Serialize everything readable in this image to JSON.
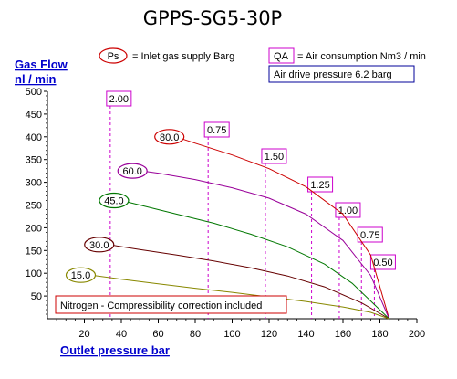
{
  "chart_data": {
    "type": "line",
    "title": "GPPS-SG5-30P",
    "ylabel_line1": "Gas Flow",
    "ylabel_line2": "nl / min",
    "xlabel": "Outlet pressure   bar",
    "xlim": [
      0,
      200
    ],
    "ylim": [
      0,
      500
    ],
    "x_ticks": [
      20,
      40,
      60,
      80,
      100,
      120,
      140,
      160,
      180,
      200
    ],
    "y_ticks": [
      50,
      100,
      150,
      200,
      250,
      300,
      350,
      400,
      450,
      500
    ],
    "legend": {
      "ps_key": "Ps",
      "ps_text": "= Inlet gas supply  Barg",
      "qa_key": "QA",
      "qa_text": "= Air consumption  Nm3 / min",
      "air_drive": "Air drive pressure  6.2 barg"
    },
    "note": "Nitrogen - Compressibility correction included",
    "series": [
      {
        "name": "80.0",
        "color": "#cc0000",
        "points": [
          [
            68,
            402
          ],
          [
            80,
            386
          ],
          [
            100,
            360
          ],
          [
            120,
            330
          ],
          [
            140,
            290
          ],
          [
            160,
            230
          ],
          [
            175,
            140
          ],
          [
            185,
            0
          ]
        ]
      },
      {
        "name": "60.0",
        "color": "#990099",
        "points": [
          [
            48,
            327
          ],
          [
            60,
            320
          ],
          [
            80,
            306
          ],
          [
            100,
            288
          ],
          [
            120,
            265
          ],
          [
            140,
            230
          ],
          [
            160,
            172
          ],
          [
            175,
            95
          ],
          [
            185,
            0
          ]
        ]
      },
      {
        "name": "45.0",
        "color": "#007700",
        "points": [
          [
            38,
            262
          ],
          [
            50,
            250
          ],
          [
            70,
            230
          ],
          [
            90,
            210
          ],
          [
            110,
            186
          ],
          [
            130,
            158
          ],
          [
            150,
            120
          ],
          [
            165,
            78
          ],
          [
            185,
            0
          ]
        ]
      },
      {
        "name": "30.0",
        "color": "#660000",
        "points": [
          [
            30,
            165
          ],
          [
            50,
            152
          ],
          [
            70,
            140
          ],
          [
            90,
            127
          ],
          [
            110,
            112
          ],
          [
            130,
            94
          ],
          [
            150,
            70
          ],
          [
            170,
            35
          ],
          [
            185,
            0
          ]
        ]
      },
      {
        "name": "15.0",
        "color": "#888800",
        "points": [
          [
            20,
            98
          ],
          [
            40,
            87
          ],
          [
            60,
            77
          ],
          [
            80,
            67
          ],
          [
            100,
            58
          ],
          [
            120,
            48
          ],
          [
            140,
            38
          ],
          [
            160,
            26
          ],
          [
            175,
            14
          ],
          [
            185,
            0
          ]
        ]
      }
    ],
    "air_consumption": [
      {
        "label": "2.00",
        "x": 34,
        "y": 0
      },
      {
        "label": "0.75",
        "x": 87,
        "y": 0
      },
      {
        "label": "1.50",
        "x": 118,
        "y": 0
      },
      {
        "label": "1.25",
        "x": 143,
        "y": 0
      },
      {
        "label": "1.00",
        "x": 158,
        "y": 0
      },
      {
        "label": "0.75",
        "x": 170,
        "y": 0
      },
      {
        "label": "0.50",
        "x": 177,
        "y": 0
      }
    ]
  }
}
